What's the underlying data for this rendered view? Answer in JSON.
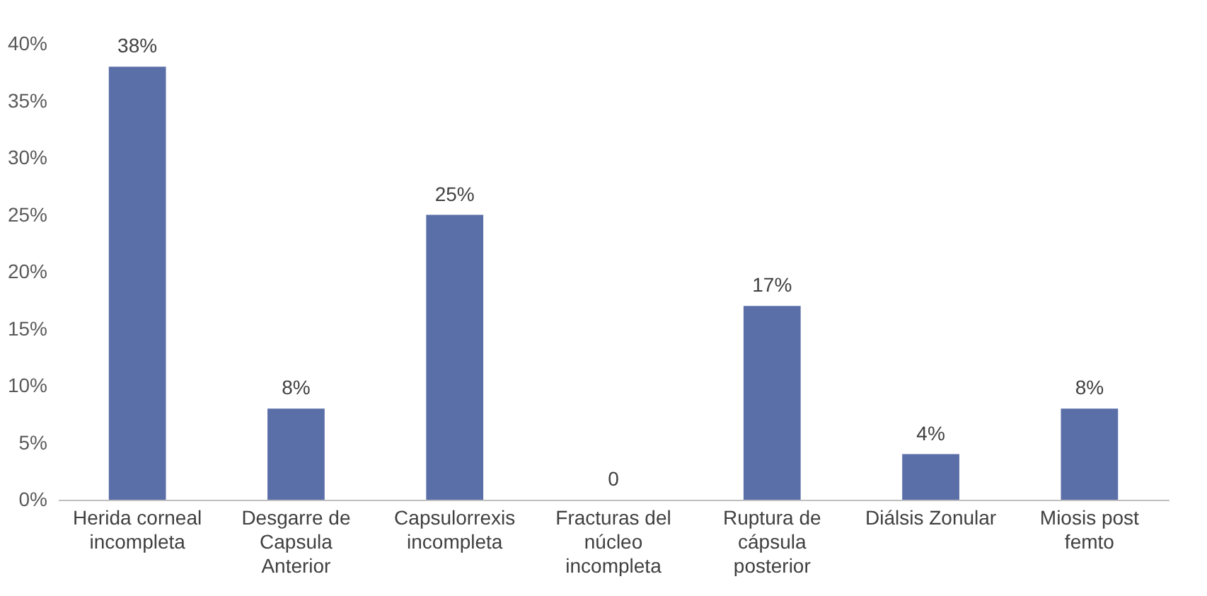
{
  "chart_data": {
    "type": "bar",
    "categories": [
      "Herida corneal incompleta",
      "Desgarre de Capsula Anterior",
      "Capsulorrexis incompleta",
      "Fracturas del núcleo incompleta",
      "Ruptura de cápsula posterior",
      "Diálsis Zonular",
      "Miosis post femto"
    ],
    "values": [
      38,
      8,
      25,
      0,
      17,
      4,
      8
    ],
    "value_labels": [
      "38%",
      "8%",
      "25%",
      "0",
      "17%",
      "4%",
      "8%"
    ],
    "color": "#5a6ea8",
    "ylim": [
      0,
      40
    ],
    "yticks": [
      {
        "value": 0,
        "label": "0%"
      },
      {
        "value": 5,
        "label": "5%"
      },
      {
        "value": 10,
        "label": "10%"
      },
      {
        "value": 15,
        "label": "15%"
      },
      {
        "value": 20,
        "label": "20%"
      },
      {
        "value": 25,
        "label": "25%"
      },
      {
        "value": 30,
        "label": "30%"
      },
      {
        "value": 35,
        "label": "35%"
      },
      {
        "value": 40,
        "label": "40%"
      }
    ],
    "grid": false
  }
}
